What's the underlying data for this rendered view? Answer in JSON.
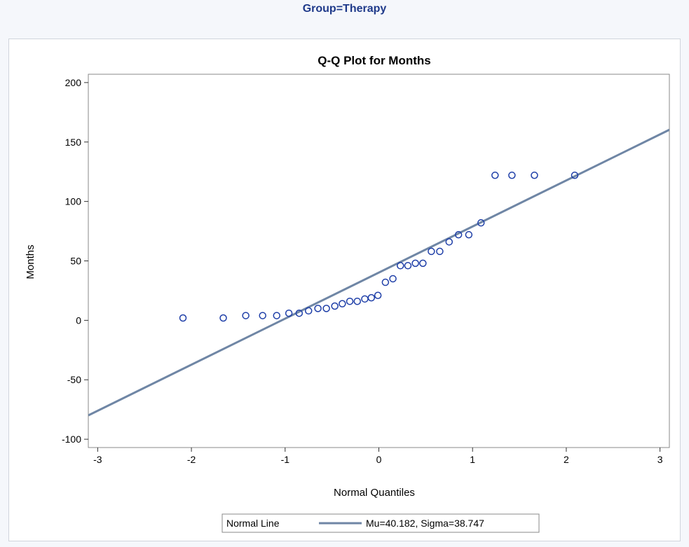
{
  "header": {
    "group_title": "Group=Therapy"
  },
  "chart_data": {
    "type": "scatter",
    "title": "Q-Q Plot for Months",
    "xlabel": "Normal Quantiles",
    "ylabel": "Months",
    "xlim": [
      -3.1,
      3.1
    ],
    "ylim": [
      -107,
      207
    ],
    "xticks": [
      -3,
      -2,
      -1,
      0,
      1,
      2,
      3
    ],
    "yticks": [
      -100,
      -50,
      0,
      50,
      100,
      150,
      200
    ],
    "grid": false,
    "colors": {
      "points": "#1f3fa8",
      "line": "#6f86a5"
    },
    "points": [
      {
        "x": -2.09,
        "y": 2
      },
      {
        "x": -1.66,
        "y": 2
      },
      {
        "x": -1.42,
        "y": 4
      },
      {
        "x": -1.24,
        "y": 4
      },
      {
        "x": -1.09,
        "y": 4
      },
      {
        "x": -0.96,
        "y": 6
      },
      {
        "x": -0.85,
        "y": 6
      },
      {
        "x": -0.75,
        "y": 8
      },
      {
        "x": -0.65,
        "y": 10
      },
      {
        "x": -0.56,
        "y": 10
      },
      {
        "x": -0.47,
        "y": 12
      },
      {
        "x": -0.39,
        "y": 14
      },
      {
        "x": -0.31,
        "y": 16
      },
      {
        "x": -0.23,
        "y": 16
      },
      {
        "x": -0.15,
        "y": 18
      },
      {
        "x": -0.08,
        "y": 19
      },
      {
        "x": -0.01,
        "y": 21
      },
      {
        "x": 0.07,
        "y": 32
      },
      {
        "x": 0.15,
        "y": 35
      },
      {
        "x": 0.23,
        "y": 46
      },
      {
        "x": 0.31,
        "y": 46
      },
      {
        "x": 0.39,
        "y": 48
      },
      {
        "x": 0.47,
        "y": 48
      },
      {
        "x": 0.56,
        "y": 58
      },
      {
        "x": 0.65,
        "y": 58
      },
      {
        "x": 0.75,
        "y": 66
      },
      {
        "x": 0.85,
        "y": 72
      },
      {
        "x": 0.96,
        "y": 72
      },
      {
        "x": 1.09,
        "y": 82
      },
      {
        "x": 1.24,
        "y": 122
      },
      {
        "x": 1.42,
        "y": 122
      },
      {
        "x": 1.66,
        "y": 122
      },
      {
        "x": 2.09,
        "y": 122
      }
    ],
    "reference_line": {
      "name": "Normal Line",
      "mu": 40.182,
      "sigma": 38.747
    },
    "legend": {
      "placement": "bottom",
      "title": "Normal Line",
      "entry": "Mu=40.182, Sigma=38.747"
    }
  }
}
